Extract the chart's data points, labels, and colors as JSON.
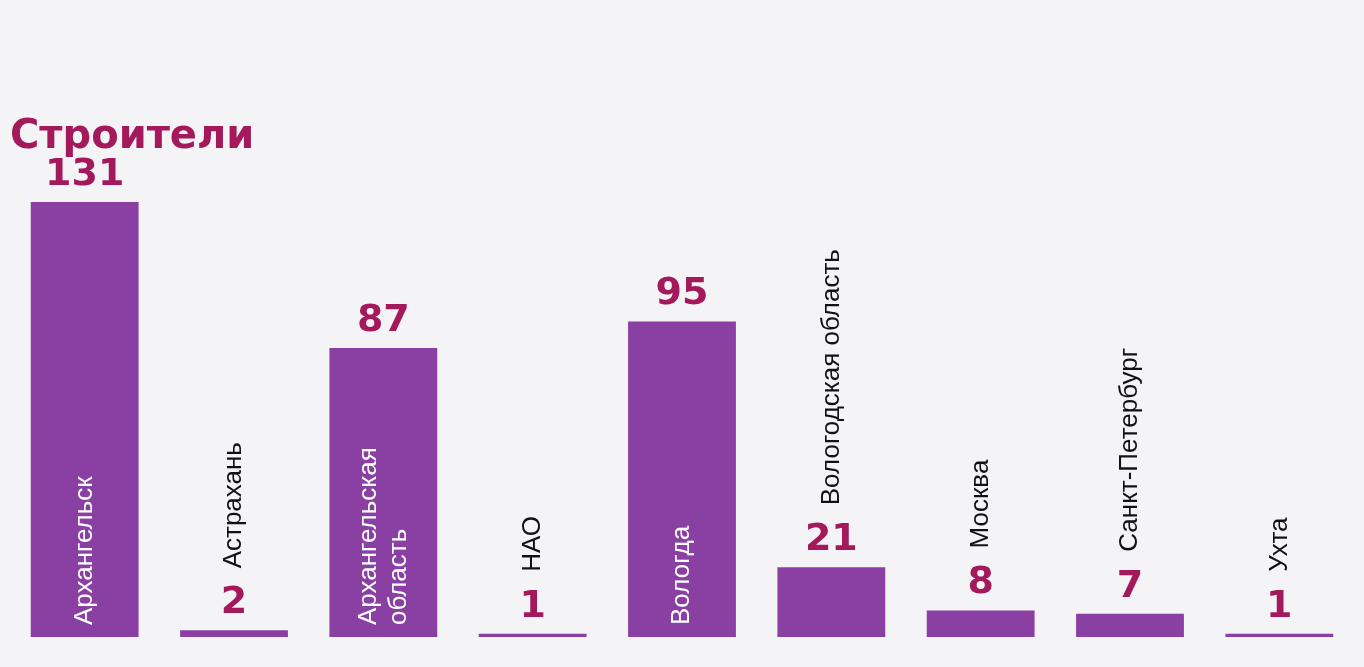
{
  "chart_data": {
    "type": "bar",
    "title": "Строители",
    "categories": [
      "Архангельск",
      "Астрахань",
      "Архангельская область",
      "НАО",
      "Вологда",
      "Вологодская область",
      "Москва",
      "Санкт-Петербург",
      "Ухта"
    ],
    "values": [
      131,
      2,
      87,
      1,
      95,
      21,
      8,
      7,
      1
    ],
    "color": "#8a3fa3",
    "data_labels": true
  }
}
